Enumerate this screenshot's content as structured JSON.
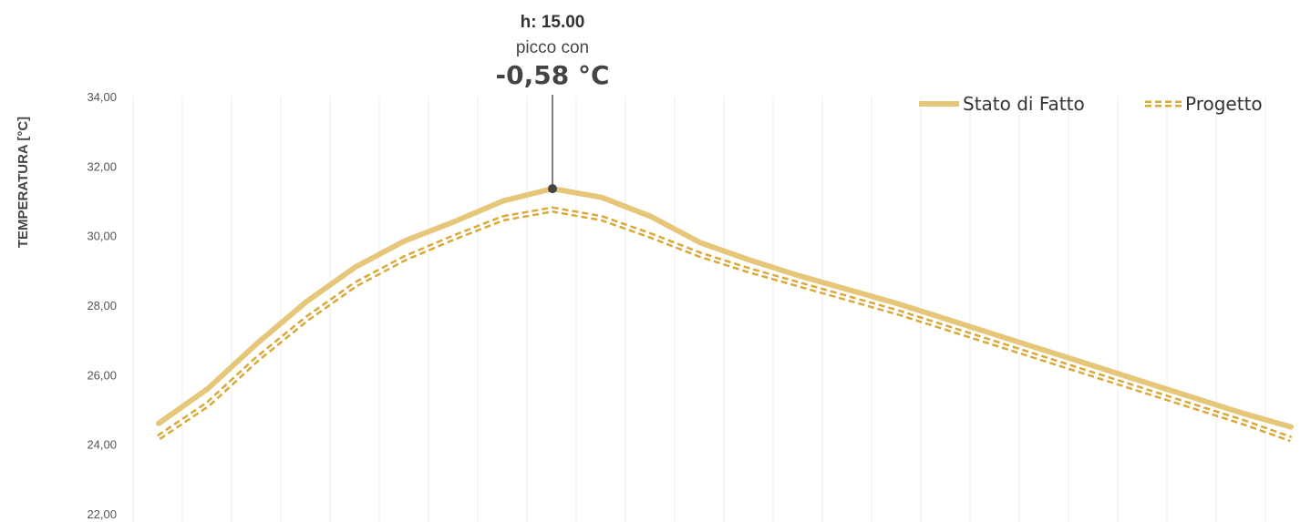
{
  "chart_data": {
    "type": "line",
    "ylabel": "TEMPERATURA [°C]",
    "ylim": [
      22,
      34
    ],
    "y_ticks": [
      "22,00",
      "24,00",
      "26,00",
      "28,00",
      "30,00",
      "32,00",
      "34,00"
    ],
    "grid": "vertical",
    "legend_position": "top-right",
    "x": [
      0,
      1,
      2,
      3,
      4,
      5,
      6,
      7,
      8,
      9,
      10,
      11,
      12,
      13,
      14,
      15,
      16,
      17,
      18,
      19,
      20,
      21,
      22,
      23
    ],
    "series": [
      {
        "name": "Stato di Fatto",
        "style": "solid",
        "color": "#E6C77A",
        "values": [
          24.6,
          25.6,
          26.9,
          28.1,
          29.1,
          29.85,
          30.4,
          31.0,
          31.35,
          31.1,
          30.55,
          29.8,
          29.3,
          28.85,
          28.45,
          28.05,
          27.6,
          27.15,
          26.7,
          26.25,
          25.8,
          25.35,
          24.9,
          24.5
        ]
      },
      {
        "name": "Progetto",
        "style": "dashed",
        "color": "#D9A93A",
        "values": [
          24.2,
          25.15,
          26.45,
          27.6,
          28.6,
          29.35,
          29.95,
          30.5,
          30.75,
          30.5,
          30.0,
          29.45,
          29.0,
          28.6,
          28.2,
          27.8,
          27.35,
          26.9,
          26.45,
          26.0,
          25.55,
          25.1,
          24.65,
          24.15
        ]
      }
    ],
    "annotation": {
      "hour_label": "h: 15.00",
      "text": "picco con",
      "value": "-0,58 °C",
      "index": 8
    }
  }
}
